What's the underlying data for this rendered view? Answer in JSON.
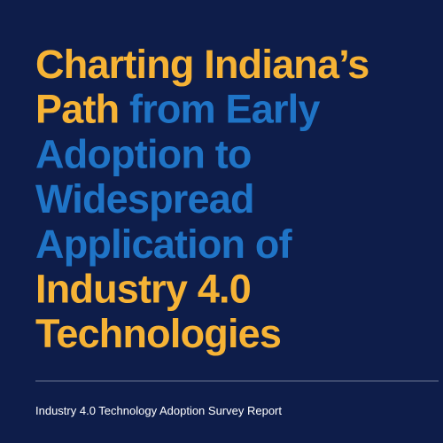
{
  "title": {
    "lines": [
      [
        {
          "text": "Charting Indiana’s",
          "color": "#f6b335"
        }
      ],
      [
        {
          "text": "Path",
          "color": "#f6b335"
        },
        {
          "text": "from Early",
          "color": "#1f74c6"
        }
      ],
      [
        {
          "text": "Adoption to",
          "color": "#1f74c6"
        }
      ],
      [
        {
          "text": "Widespread",
          "color": "#1f74c6"
        }
      ],
      [
        {
          "text": "Application of",
          "color": "#1f74c6"
        }
      ],
      [
        {
          "text": "Industry 4.0",
          "color": "#f6b335"
        }
      ],
      [
        {
          "text": "Technologies",
          "color": "#f6b335"
        }
      ]
    ]
  },
  "subtitle": "Industry 4.0 Technology Adoption Survey Report"
}
